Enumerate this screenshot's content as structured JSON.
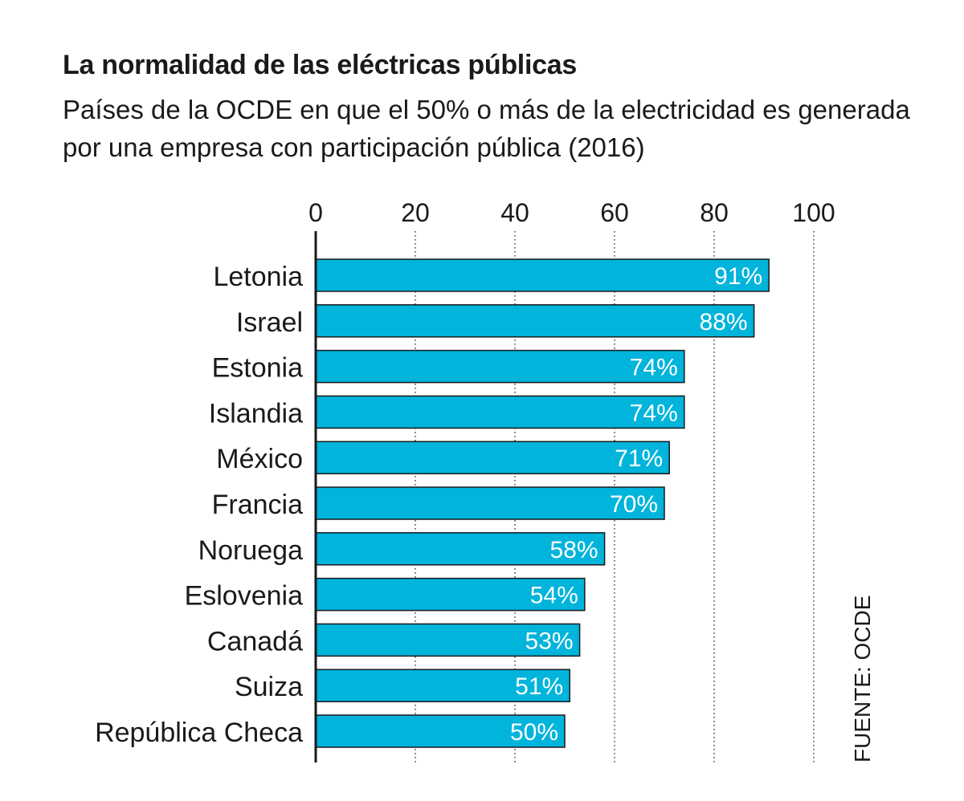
{
  "title": "La normalidad de las eléctricas públicas",
  "subtitle": "Países de la OCDE en que el 50% o más de la electricidad es generada por una empresa con participación pública (2016)",
  "source": "FUENTE: OCDE",
  "colors": {
    "bar": "#00b4dc",
    "bar_stroke": "#1a1a1a",
    "axis": "#1a1a1a",
    "grid": "#555555"
  },
  "chart_data": {
    "type": "bar",
    "orientation": "horizontal",
    "title": "La normalidad de las eléctricas públicas",
    "subtitle": "Países de la OCDE en que el 50% o más de la electricidad es generada por una empresa con participación pública (2016)",
    "categories": [
      "Letonia",
      "Israel",
      "Estonia",
      "Islandia",
      "México",
      "Francia",
      "Noruega",
      "Eslovenia",
      "Canadá",
      "Suiza",
      "República Checa"
    ],
    "values": [
      91,
      88,
      74,
      74,
      71,
      70,
      58,
      54,
      53,
      51,
      50
    ],
    "value_labels": [
      "91%",
      "88%",
      "74%",
      "74%",
      "71%",
      "70%",
      "58%",
      "54%",
      "53%",
      "51%",
      "50%"
    ],
    "xticks": [
      0,
      20,
      40,
      60,
      80,
      100
    ],
    "xtick_labels": [
      "0",
      "20",
      "40",
      "60",
      "80",
      "100"
    ],
    "xlim": [
      0,
      100
    ],
    "xaxis_position": "top",
    "grid": "vertical dotted",
    "legend": "none"
  }
}
